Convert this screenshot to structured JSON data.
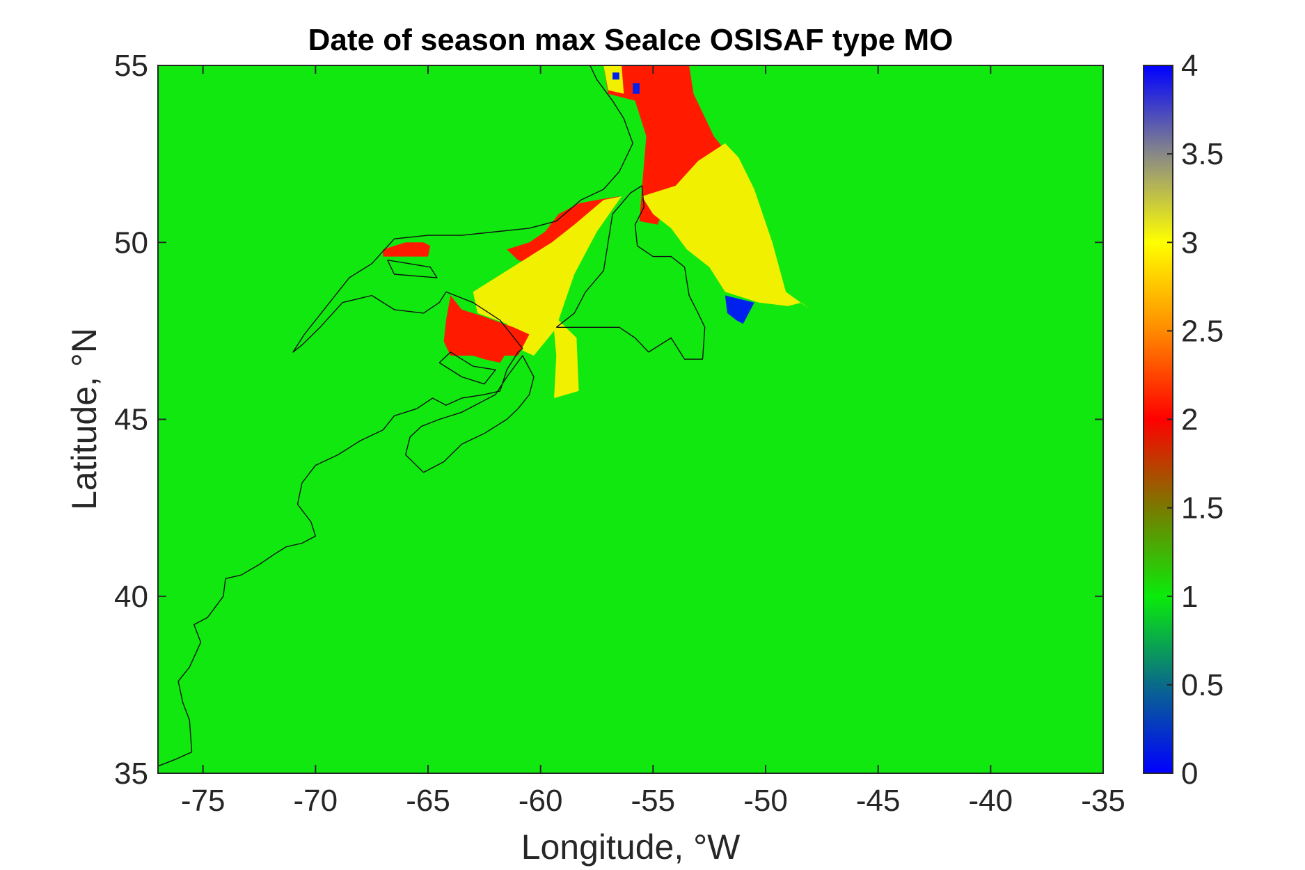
{
  "chart_data": {
    "type": "heatmap",
    "title": "Date of season max SeaIce OSISAF type MO",
    "xlabel": "Longitude, °W",
    "ylabel": "Latitude, °N",
    "xlim": [
      -77,
      -35
    ],
    "ylim": [
      35,
      55
    ],
    "x_ticks": [
      "-75",
      "-70",
      "-65",
      "-60",
      "-55",
      "-50",
      "-45",
      "-40",
      "-35"
    ],
    "y_ticks": [
      "35",
      "40",
      "45",
      "50",
      "55"
    ],
    "colorbar": {
      "range": [
        0,
        4
      ],
      "ticks": [
        "0",
        "0.5",
        "1",
        "1.5",
        "2",
        "2.5",
        "3",
        "3.5",
        "4"
      ],
      "stops": [
        {
          "value": 0.0,
          "color": "#0000ff"
        },
        {
          "value": 0.5,
          "color": "#0a6a8a"
        },
        {
          "value": 1.0,
          "color": "#0aeb0a"
        },
        {
          "value": 1.5,
          "color": "#7a7a00"
        },
        {
          "value": 2.0,
          "color": "#ff0000"
        },
        {
          "value": 2.5,
          "color": "#ff8a00"
        },
        {
          "value": 3.0,
          "color": "#ffff00"
        },
        {
          "value": 3.5,
          "color": "#888888"
        },
        {
          "value": 4.0,
          "color": "#0000ff"
        }
      ]
    },
    "background_value": 1,
    "background_color": "#10e810",
    "regions": [
      {
        "name": "north-labrador-red",
        "value": 2,
        "color": "#ff1a00",
        "polygon": [
          [
            -57.2,
            55
          ],
          [
            -53.4,
            55
          ],
          [
            -53.2,
            54.2
          ],
          [
            -52.3,
            53.0
          ],
          [
            -51.8,
            52.6
          ],
          [
            -52.5,
            52.3
          ],
          [
            -53.2,
            51.9
          ],
          [
            -53.8,
            51.6
          ],
          [
            -54.5,
            51.0
          ],
          [
            -54.8,
            50.5
          ],
          [
            -55.6,
            50.6
          ],
          [
            -55.5,
            51.5
          ],
          [
            -55.3,
            53.0
          ],
          [
            -55.8,
            54.0
          ],
          [
            -57.0,
            54.2
          ]
        ]
      },
      {
        "name": "grand-banks-yellow",
        "value": 3,
        "color": "#f0f000",
        "polygon": [
          [
            -55.5,
            51.3
          ],
          [
            -54.0,
            51.6
          ],
          [
            -53.0,
            52.3
          ],
          [
            -51.8,
            52.8
          ],
          [
            -51.2,
            52.4
          ],
          [
            -50.5,
            51.5
          ],
          [
            -49.7,
            50.0
          ],
          [
            -49.1,
            48.6
          ],
          [
            -48.0,
            48.1
          ],
          [
            -48.4,
            48.3
          ],
          [
            -49.0,
            48.2
          ],
          [
            -50.3,
            48.3
          ],
          [
            -51.8,
            48.6
          ],
          [
            -52.5,
            49.3
          ],
          [
            -53.5,
            49.8
          ],
          [
            -54.2,
            50.4
          ],
          [
            -55.0,
            50.8
          ]
        ]
      },
      {
        "name": "labrador-coast-yellow",
        "value": 3,
        "color": "#f0f000",
        "polygon": [
          [
            -57.2,
            55
          ],
          [
            -56.4,
            55
          ],
          [
            -56.3,
            54.2
          ],
          [
            -57.0,
            54.3
          ]
        ]
      },
      {
        "name": "grand-banks-blue",
        "value": 4,
        "color": "#0020ee",
        "polygon": [
          [
            -51.8,
            48.5
          ],
          [
            -50.5,
            48.3
          ],
          [
            -51.0,
            47.7
          ],
          [
            -51.3,
            47.8
          ],
          [
            -51.7,
            48.0
          ]
        ]
      },
      {
        "name": "north-tiny-blue-1",
        "value": 4,
        "color": "#0020ee",
        "polygon": [
          [
            -56.8,
            54.8
          ],
          [
            -56.5,
            54.8
          ],
          [
            -56.5,
            54.6
          ],
          [
            -56.8,
            54.6
          ]
        ]
      },
      {
        "name": "north-tiny-blue-2",
        "value": 4,
        "color": "#0020ee",
        "polygon": [
          [
            -55.9,
            54.5
          ],
          [
            -55.6,
            54.5
          ],
          [
            -55.6,
            54.2
          ],
          [
            -55.9,
            54.2
          ]
        ]
      },
      {
        "name": "belle-isle-red",
        "value": 2,
        "color": "#ff1a00",
        "polygon": [
          [
            -57.5,
            51.2
          ],
          [
            -56.5,
            51.3
          ],
          [
            -57.0,
            50.8
          ],
          [
            -58.2,
            50.0
          ],
          [
            -59.0,
            49.5
          ],
          [
            -60.0,
            49.3
          ],
          [
            -61.0,
            49.5
          ],
          [
            -61.5,
            49.8
          ],
          [
            -60.5,
            50.0
          ],
          [
            -59.8,
            50.3
          ],
          [
            -59.2,
            50.8
          ],
          [
            -58.3,
            51.1
          ]
        ]
      },
      {
        "name": "gulf-yellow",
        "value": 3,
        "color": "#f0f000",
        "polygon": [
          [
            -57.2,
            51.2
          ],
          [
            -56.4,
            51.3
          ],
          [
            -57.5,
            50.3
          ],
          [
            -58.5,
            49.1
          ],
          [
            -59.2,
            47.8
          ],
          [
            -58.4,
            47.3
          ],
          [
            -58.3,
            45.8
          ],
          [
            -59.4,
            45.6
          ],
          [
            -59.3,
            46.8
          ],
          [
            -59.4,
            47.5
          ],
          [
            -60.3,
            46.8
          ],
          [
            -61.0,
            47.0
          ],
          [
            -61.5,
            47.7
          ],
          [
            -62.8,
            48.0
          ],
          [
            -63.0,
            48.6
          ],
          [
            -61.5,
            49.2
          ],
          [
            -60.5,
            49.6
          ],
          [
            -59.5,
            50.0
          ],
          [
            -58.5,
            50.5
          ]
        ]
      },
      {
        "name": "gulf-red",
        "value": 2,
        "color": "#ff1a00",
        "polygon": [
          [
            -64.0,
            48.5
          ],
          [
            -63.5,
            48.1
          ],
          [
            -62.5,
            47.9
          ],
          [
            -61.2,
            47.6
          ],
          [
            -60.5,
            47.4
          ],
          [
            -61.0,
            46.8
          ],
          [
            -61.6,
            46.8
          ],
          [
            -61.8,
            46.6
          ],
          [
            -62.5,
            46.7
          ],
          [
            -63.0,
            46.8
          ],
          [
            -64.0,
            46.8
          ],
          [
            -64.3,
            47.2
          ],
          [
            -64.2,
            47.8
          ]
        ]
      },
      {
        "name": "anticosti-red",
        "value": 2,
        "color": "#ff1a00",
        "polygon": [
          [
            -67.0,
            49.6
          ],
          [
            -65.0,
            49.6
          ],
          [
            -64.9,
            49.9
          ],
          [
            -65.2,
            50.0
          ],
          [
            -66.0,
            50.0
          ],
          [
            -67.0,
            49.8
          ]
        ]
      }
    ],
    "coastlines": [
      [
        [
          -77,
          35.2
        ],
        [
          -76.2,
          35.4
        ],
        [
          -75.5,
          35.6
        ],
        [
          -75.6,
          36.5
        ],
        [
          -75.9,
          37.0
        ],
        [
          -76.1,
          37.6
        ],
        [
          -75.6,
          38.0
        ],
        [
          -75.1,
          38.7
        ],
        [
          -75.4,
          39.2
        ],
        [
          -74.8,
          39.4
        ],
        [
          -74.1,
          40.0
        ],
        [
          -74.0,
          40.5
        ],
        [
          -73.3,
          40.6
        ],
        [
          -72.5,
          40.9
        ],
        [
          -71.8,
          41.2
        ],
        [
          -71.3,
          41.4
        ],
        [
          -70.6,
          41.5
        ],
        [
          -70.0,
          41.7
        ],
        [
          -70.2,
          42.1
        ],
        [
          -70.8,
          42.6
        ],
        [
          -70.6,
          43.2
        ],
        [
          -70.0,
          43.7
        ],
        [
          -69.0,
          44.0
        ],
        [
          -68.0,
          44.4
        ],
        [
          -67.0,
          44.7
        ],
        [
          -66.5,
          45.1
        ],
        [
          -65.5,
          45.3
        ],
        [
          -64.8,
          45.6
        ],
        [
          -64.2,
          45.4
        ],
        [
          -63.5,
          45.6
        ],
        [
          -62.5,
          45.7
        ],
        [
          -61.8,
          45.8
        ],
        [
          -61.5,
          46.4
        ],
        [
          -61.0,
          46.9
        ],
        [
          -60.8,
          47.0
        ],
        [
          -61.8,
          47.8
        ],
        [
          -63.0,
          48.3
        ],
        [
          -64.2,
          48.6
        ],
        [
          -64.5,
          48.3
        ],
        [
          -65.2,
          48.0
        ],
        [
          -66.5,
          48.1
        ],
        [
          -67.5,
          48.5
        ],
        [
          -68.8,
          48.3
        ],
        [
          -69.8,
          47.6
        ],
        [
          -70.6,
          47.1
        ],
        [
          -71.0,
          46.9
        ],
        [
          -70.5,
          47.4
        ],
        [
          -69.5,
          48.2
        ],
        [
          -68.5,
          49.0
        ],
        [
          -67.5,
          49.4
        ],
        [
          -66.5,
          50.1
        ],
        [
          -65.0,
          50.2
        ],
        [
          -63.5,
          50.2
        ],
        [
          -62.0,
          50.3
        ],
        [
          -60.5,
          50.4
        ],
        [
          -59.3,
          50.6
        ],
        [
          -58.2,
          51.2
        ],
        [
          -57.2,
          51.5
        ],
        [
          -56.5,
          52.0
        ],
        [
          -55.9,
          52.8
        ],
        [
          -56.3,
          53.5
        ],
        [
          -56.8,
          54.0
        ],
        [
          -57.5,
          54.6
        ],
        [
          -57.8,
          55.0
        ]
      ],
      [
        [
          -66.8,
          49.5
        ],
        [
          -64.9,
          49.3
        ],
        [
          -64.6,
          49.0
        ],
        [
          -66.5,
          49.1
        ],
        [
          -66.8,
          49.5
        ]
      ],
      [
        [
          -65.2,
          43.5
        ],
        [
          -64.3,
          43.8
        ],
        [
          -63.5,
          44.3
        ],
        [
          -62.5,
          44.6
        ],
        [
          -61.5,
          45.0
        ],
        [
          -61.0,
          45.3
        ],
        [
          -60.5,
          45.7
        ],
        [
          -60.3,
          46.2
        ],
        [
          -60.8,
          46.8
        ],
        [
          -61.5,
          46.2
        ],
        [
          -62.0,
          45.7
        ],
        [
          -63.5,
          45.2
        ],
        [
          -64.5,
          45.0
        ],
        [
          -65.3,
          44.8
        ],
        [
          -65.8,
          44.5
        ],
        [
          -66.0,
          44.0
        ],
        [
          -65.2,
          43.5
        ]
      ],
      [
        [
          -59.3,
          47.6
        ],
        [
          -58.5,
          48.0
        ],
        [
          -58.0,
          48.6
        ],
        [
          -57.2,
          49.2
        ],
        [
          -57.0,
          50.0
        ],
        [
          -56.8,
          50.8
        ],
        [
          -56.0,
          51.4
        ],
        [
          -55.5,
          51.6
        ],
        [
          -55.4,
          51.0
        ],
        [
          -55.8,
          50.5
        ],
        [
          -55.7,
          49.9
        ],
        [
          -55.0,
          49.6
        ],
        [
          -54.2,
          49.6
        ],
        [
          -53.6,
          49.3
        ],
        [
          -53.4,
          48.5
        ],
        [
          -53.0,
          48.0
        ],
        [
          -52.7,
          47.6
        ],
        [
          -52.8,
          46.7
        ],
        [
          -53.6,
          46.7
        ],
        [
          -54.2,
          47.3
        ],
        [
          -55.2,
          46.9
        ],
        [
          -55.8,
          47.3
        ],
        [
          -56.5,
          47.6
        ],
        [
          -58.0,
          47.6
        ],
        [
          -59.3,
          47.6
        ]
      ],
      [
        [
          -64.5,
          46.6
        ],
        [
          -63.5,
          46.2
        ],
        [
          -62.5,
          46.0
        ],
        [
          -62.0,
          46.4
        ],
        [
          -63.0,
          46.5
        ],
        [
          -64.0,
          46.9
        ],
        [
          -64.5,
          46.6
        ]
      ]
    ]
  }
}
